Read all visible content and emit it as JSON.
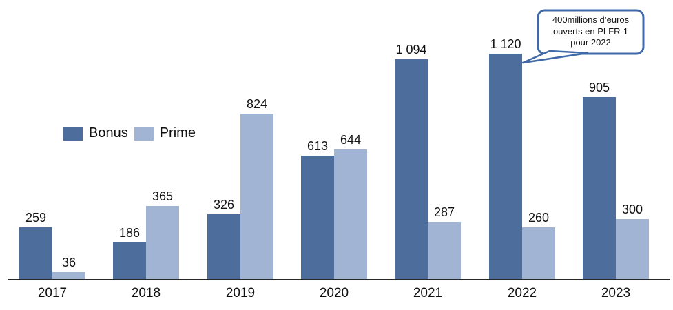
{
  "chart_data": {
    "type": "bar",
    "categories": [
      "2017",
      "2018",
      "2019",
      "2020",
      "2021",
      "2022",
      "2023"
    ],
    "series": [
      {
        "name": "Bonus",
        "color": "#4D6D9C",
        "values": [
          259,
          186,
          326,
          613,
          1094,
          1120,
          905
        ],
        "labels": [
          "259",
          "186",
          "326",
          "613",
          "1 094",
          "1 120",
          "905"
        ]
      },
      {
        "name": "Prime",
        "color": "#A1B4D3",
        "values": [
          36,
          365,
          824,
          644,
          287,
          260,
          300
        ],
        "labels": [
          "36",
          "365",
          "824",
          "644",
          "287",
          "260",
          "300"
        ]
      }
    ],
    "title": "",
    "xlabel": "",
    "ylabel": "",
    "ylim": [
      0,
      1200
    ],
    "grid": false,
    "legend_position": "left-middle",
    "axis_color": "#262626",
    "annotation": {
      "lines": [
        "400millions d’euros",
        "ouverts en PLFR-1",
        "pour 2022"
      ],
      "target_category": "2022",
      "border_color": "#4169A8",
      "fill_color": "#FFFFFF"
    }
  }
}
